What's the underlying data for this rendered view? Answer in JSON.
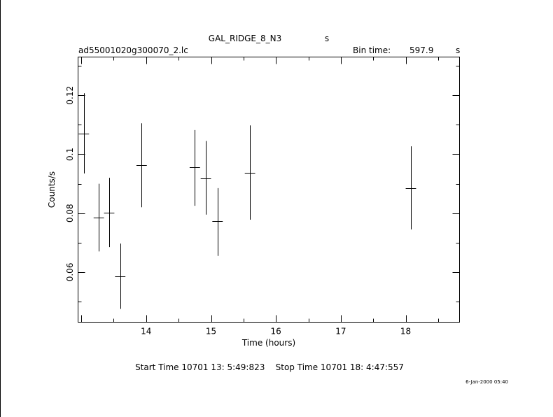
{
  "chart_data": {
    "type": "scatter",
    "title": "GAL_RIDGE_8_N3",
    "title_suffix": "s",
    "file_label": "ad55001020g300070_2.lc",
    "bin_time_label": "Bin time:",
    "bin_time_value": "597.9",
    "bin_time_unit": "s",
    "xlabel": "Time (hours)",
    "ylabel": "Counts/s",
    "xlim": [
      12.95,
      18.83
    ],
    "ylim": [
      0.043,
      0.133
    ],
    "xticks": [
      14,
      15,
      16,
      17,
      18
    ],
    "xtick_labels": [
      "14",
      "15",
      "16",
      "17",
      "18"
    ],
    "yticks": [
      0.06,
      0.08,
      0.1,
      0.12
    ],
    "ytick_labels": [
      "0.06",
      "0.08",
      "0.1",
      "0.12"
    ],
    "grid": false,
    "points": [
      {
        "x": 13.04,
        "y": 0.107,
        "xerr": 0.08,
        "ylo": 0.0935,
        "yhi": 0.1207
      },
      {
        "x": 13.27,
        "y": 0.0785,
        "xerr": 0.08,
        "ylo": 0.067,
        "yhi": 0.09
      },
      {
        "x": 13.43,
        "y": 0.0802,
        "xerr": 0.08,
        "ylo": 0.0685,
        "yhi": 0.092
      },
      {
        "x": 13.6,
        "y": 0.0585,
        "xerr": 0.08,
        "ylo": 0.0475,
        "yhi": 0.0697
      },
      {
        "x": 13.93,
        "y": 0.0962,
        "xerr": 0.08,
        "ylo": 0.082,
        "yhi": 0.1105
      },
      {
        "x": 14.75,
        "y": 0.0955,
        "xerr": 0.08,
        "ylo": 0.0825,
        "yhi": 0.1082
      },
      {
        "x": 14.92,
        "y": 0.0918,
        "xerr": 0.08,
        "ylo": 0.0795,
        "yhi": 0.1045
      },
      {
        "x": 15.1,
        "y": 0.0772,
        "xerr": 0.08,
        "ylo": 0.0655,
        "yhi": 0.0885
      },
      {
        "x": 15.6,
        "y": 0.0938,
        "xerr": 0.08,
        "ylo": 0.0778,
        "yhi": 0.1098
      },
      {
        "x": 18.08,
        "y": 0.0885,
        "xerr": 0.08,
        "ylo": 0.0745,
        "yhi": 0.1027
      }
    ]
  },
  "footer": {
    "start_stop": "Start Time 10701 13: 5:49:823    Stop Time 10701 18: 4:47:557",
    "timestamp": "6-Jan-2000 05:40"
  },
  "colors": {
    "ink": "#000000",
    "background": "#ffffff"
  }
}
